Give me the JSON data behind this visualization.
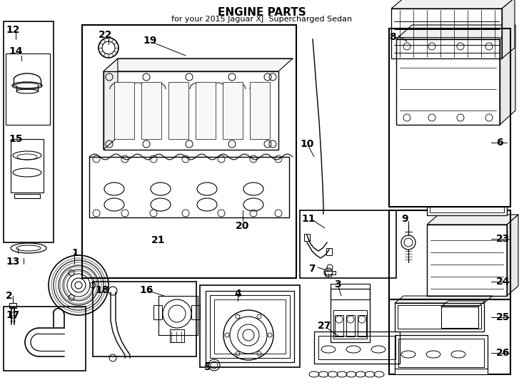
{
  "title": "ENGINE PARTS",
  "subtitle": "for your 2015 Jaguar XJ  Supercharged Sedan",
  "bg": "#ffffff",
  "lc": "#000000",
  "fig_w": 7.34,
  "fig_h": 5.4,
  "dpi": 100,
  "title_fs": 11,
  "sub_fs": 8,
  "num_fs": 10,
  "num_bold": true
}
